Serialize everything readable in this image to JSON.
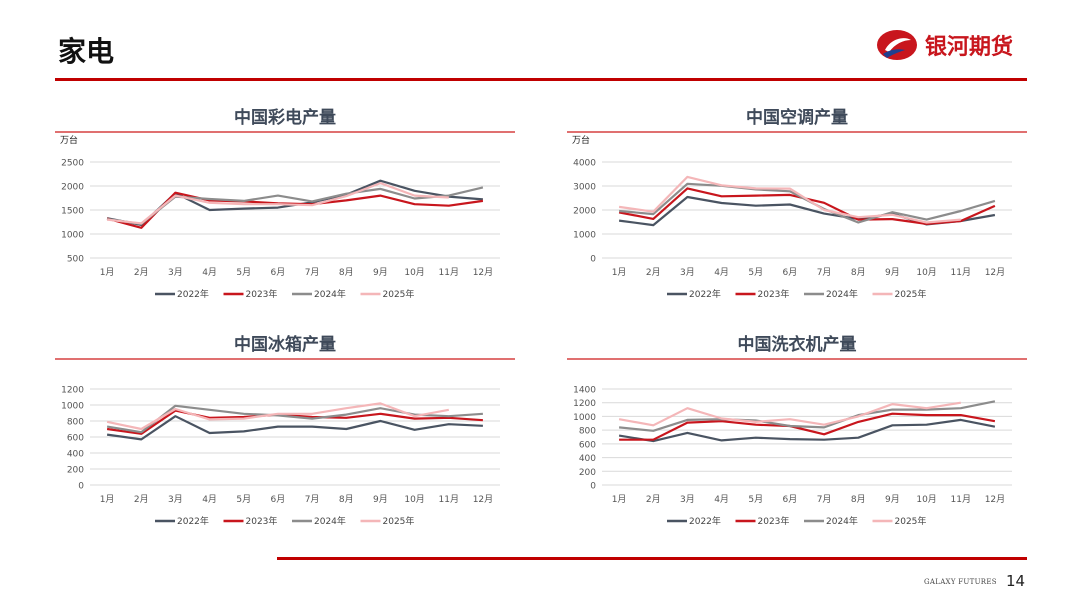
{
  "header": {
    "title": "家电"
  },
  "logo": {
    "text": "银河期货",
    "brand_color": "#c8161d"
  },
  "footer": {
    "brand": "GALAXY FUTURES",
    "page_number": "14"
  },
  "colors": {
    "2022年": "#4a5462",
    "2023年": "#c8161d",
    "2024年": "#8c8c8c",
    "2025年": "#f4b6b8",
    "rule": "#c00000"
  },
  "chart_data": [
    {
      "type": "line",
      "title": "中国彩电产量",
      "ylabel": "万台",
      "categories": [
        "1月",
        "2月",
        "3月",
        "4月",
        "5月",
        "6月",
        "7月",
        "8月",
        "9月",
        "10月",
        "11月",
        "12月"
      ],
      "ylim": [
        500,
        2500
      ],
      "yticks": [
        500,
        1000,
        1500,
        2000,
        2500
      ],
      "legend": "bottom",
      "series": [
        {
          "name": "2022年",
          "values": [
            1330,
            1190,
            1850,
            1500,
            1530,
            1550,
            1660,
            1820,
            2110,
            1900,
            1780,
            1720
          ]
        },
        {
          "name": "2023年",
          "values": [
            1320,
            1130,
            1860,
            1700,
            1680,
            1640,
            1620,
            1700,
            1800,
            1620,
            1590,
            1690
          ]
        },
        {
          "name": "2024年",
          "values": [
            1310,
            1210,
            1780,
            1730,
            1690,
            1800,
            1680,
            1840,
            1940,
            1740,
            1800,
            1970
          ]
        },
        {
          "name": "2025年",
          "values": [
            1300,
            1220,
            1800,
            1650,
            1620,
            1620,
            1600,
            1790,
            2060,
            1800,
            1760,
            null
          ]
        }
      ]
    },
    {
      "type": "line",
      "title": "中国空调产量",
      "ylabel": "万台",
      "categories": [
        "1月",
        "2月",
        "3月",
        "4月",
        "5月",
        "6月",
        "7月",
        "8月",
        "9月",
        "10月",
        "11月",
        "12月"
      ],
      "ylim": [
        0,
        4000
      ],
      "yticks": [
        0,
        1000,
        2000,
        3000,
        4000
      ],
      "legend": "bottom",
      "series": [
        {
          "name": "2022年",
          "values": [
            1560,
            1370,
            2540,
            2290,
            2180,
            2230,
            1850,
            1620,
            1840,
            1400,
            1540,
            1790
          ]
        },
        {
          "name": "2023年",
          "values": [
            1900,
            1630,
            2900,
            2570,
            2600,
            2630,
            2300,
            1600,
            1620,
            1420,
            1540,
            2170
          ]
        },
        {
          "name": "2024年",
          "values": [
            1960,
            1830,
            3090,
            3010,
            2860,
            2780,
            2040,
            1480,
            1910,
            1600,
            1960,
            2380
          ]
        },
        {
          "name": "2025年",
          "values": [
            2130,
            1930,
            3380,
            3030,
            2900,
            2890,
            2000,
            1700,
            1800,
            1480,
            1600,
            null
          ]
        }
      ]
    },
    {
      "type": "line",
      "title": "中国冰箱产量",
      "ylabel": "",
      "categories": [
        "1月",
        "2月",
        "3月",
        "4月",
        "5月",
        "6月",
        "7月",
        "8月",
        "9月",
        "10月",
        "11月",
        "12月"
      ],
      "ylim": [
        0,
        1200
      ],
      "yticks": [
        0,
        200,
        400,
        600,
        800,
        1000,
        1200
      ],
      "legend": "bottom",
      "series": [
        {
          "name": "2022年",
          "values": [
            630,
            570,
            860,
            650,
            670,
            730,
            730,
            700,
            800,
            690,
            760,
            740
          ]
        },
        {
          "name": "2023年",
          "values": [
            700,
            640,
            930,
            840,
            850,
            880,
            850,
            840,
            890,
            830,
            840,
            810
          ]
        },
        {
          "name": "2024年",
          "values": [
            730,
            660,
            990,
            940,
            890,
            870,
            830,
            880,
            960,
            880,
            860,
            890
          ]
        },
        {
          "name": "2025年",
          "values": [
            790,
            700,
            950,
            820,
            830,
            890,
            890,
            960,
            1020,
            860,
            940,
            null
          ]
        }
      ]
    },
    {
      "type": "line",
      "title": "中国洗衣机产量",
      "ylabel": "",
      "categories": [
        "1月",
        "2月",
        "3月",
        "4月",
        "5月",
        "6月",
        "7月",
        "8月",
        "9月",
        "10月",
        "11月",
        "12月"
      ],
      "ylim": [
        0,
        1400
      ],
      "yticks": [
        0,
        200,
        400,
        600,
        800,
        1000,
        1200,
        1400
      ],
      "legend": "bottom",
      "series": [
        {
          "name": "2022年",
          "values": [
            720,
            640,
            760,
            650,
            690,
            670,
            660,
            690,
            870,
            880,
            950,
            850
          ]
        },
        {
          "name": "2023年",
          "values": [
            660,
            660,
            910,
            930,
            880,
            860,
            740,
            920,
            1040,
            1020,
            1020,
            930
          ]
        },
        {
          "name": "2024年",
          "values": [
            840,
            790,
            950,
            960,
            940,
            860,
            840,
            1020,
            1100,
            1100,
            1120,
            1220
          ]
        },
        {
          "name": "2025年",
          "values": [
            960,
            870,
            1120,
            970,
            920,
            960,
            880,
            1000,
            1180,
            1120,
            1200,
            null
          ]
        }
      ]
    }
  ]
}
